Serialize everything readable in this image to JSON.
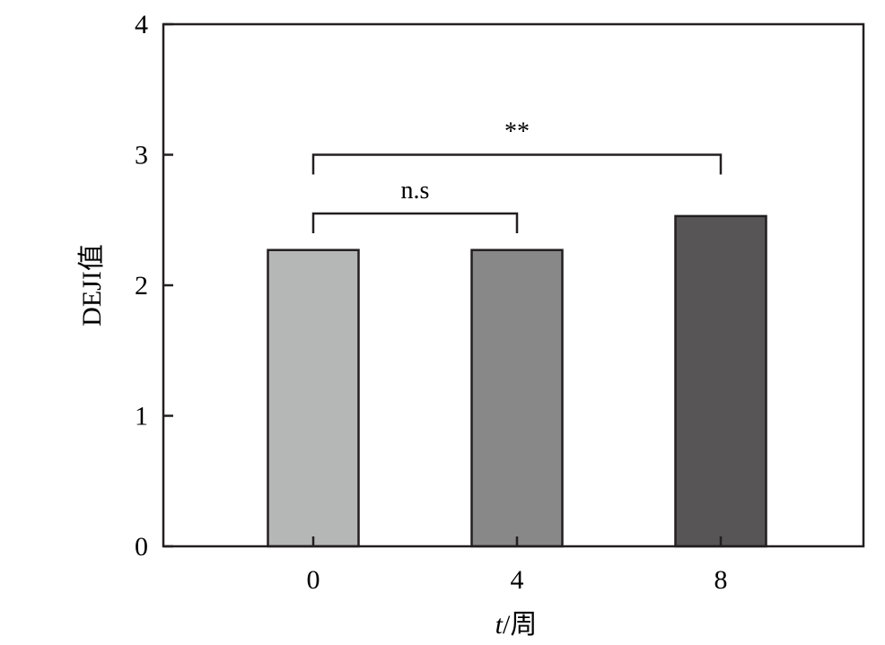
{
  "chart_data": {
    "type": "bar",
    "categories": [
      "0",
      "4",
      "8"
    ],
    "values": [
      2.27,
      2.27,
      2.53
    ],
    "bar_colors": [
      "#b5b7b6",
      "#888888",
      "#575556"
    ],
    "bar_edge_color": "#231f20",
    "ylim": [
      0,
      4
    ],
    "yticks": [
      "0",
      "1",
      "2",
      "3",
      "4"
    ],
    "xlabel_var": "t",
    "xlabel_unit": "/周",
    "ylabel": "DEJI值",
    "grid": false,
    "legend": "none",
    "significance": [
      {
        "from": "0",
        "to": "4",
        "label": "n.s",
        "level": 2.55
      },
      {
        "from": "0",
        "to": "8",
        "label": "**",
        "level": 3.0
      }
    ]
  }
}
